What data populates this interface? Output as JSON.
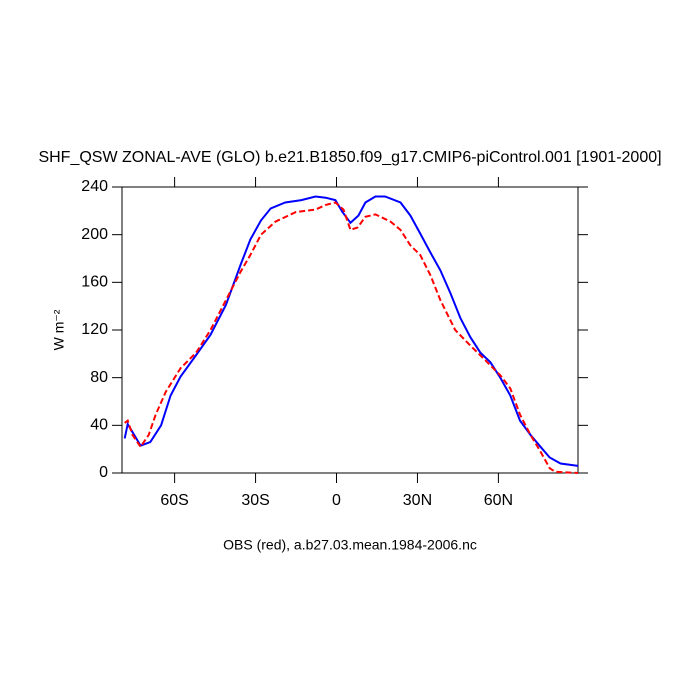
{
  "chart_data": {
    "type": "line",
    "title": "SHF_QSW ZONAL-AVE (GLO) b.e21.B1850.f09_g17.CMIP6-piControl.001 [1901-2000]",
    "ylabel": "W m⁻²",
    "caption": "OBS (red), a.b27.03.mean.1984-2006.nc",
    "xlim": [
      -79.5,
      89.5
    ],
    "ylim": [
      0,
      240
    ],
    "xticks": [
      {
        "value": -60,
        "label": "60S"
      },
      {
        "value": -30,
        "label": "30S"
      },
      0,
      {
        "value": 30,
        "label": "30N"
      },
      {
        "value": 60,
        "label": "60N"
      }
    ],
    "yticks": [
      0,
      40,
      80,
      120,
      160,
      200,
      240
    ],
    "series": [
      {
        "color": "#0000ff",
        "dash": false,
        "x": [
          -78.5,
          -77.4,
          -72.6,
          -69,
          -65,
          -61.5,
          -57.8,
          -52,
          -46.7,
          -41,
          -35.5,
          -31.9,
          -28,
          -24.4,
          -19,
          -13,
          -7.8,
          -4,
          -0.4,
          2.2,
          5.2,
          8.1,
          10.7,
          14.4,
          18,
          23.7,
          27.4,
          31,
          34.8,
          38.5,
          42.2,
          45.9,
          49.6,
          53.3,
          57,
          60.7,
          64.4,
          68,
          71.9,
          75.6,
          79,
          83,
          89.5
        ],
        "values": [
          29,
          41,
          23,
          26,
          40,
          65,
          81,
          99,
          116,
          141,
          175,
          196,
          212,
          222,
          227,
          229,
          232,
          231,
          229,
          219,
          210,
          216,
          227,
          232,
          232,
          227,
          216,
          201,
          185,
          170,
          151,
          130,
          114,
          101,
          93,
          80,
          65,
          44,
          32,
          22,
          13,
          8,
          6
        ]
      },
      {
        "color": "#ff0000",
        "dash": true,
        "x": [
          -78.5,
          -77.4,
          -75.6,
          -72.6,
          -69.6,
          -67,
          -63.3,
          -57.8,
          -52,
          -46.7,
          -41,
          -35.5,
          -31.9,
          -28,
          -22.6,
          -15,
          -7.8,
          -4,
          -0.4,
          2.6,
          5.2,
          7.8,
          10.7,
          14.4,
          20,
          23.7,
          27.4,
          31,
          34.8,
          38.5,
          44,
          49.6,
          55,
          60.7,
          64.4,
          68,
          71.9,
          75.6,
          79,
          81,
          89.5
        ],
        "values": [
          42,
          44,
          32,
          22,
          32,
          49,
          68,
          88,
          101,
          120,
          145,
          169,
          183,
          200,
          211,
          219,
          221,
          225,
          227,
          221,
          204,
          206,
          215,
          217,
          211,
          204,
          191,
          183,
          166,
          145,
          120,
          107,
          95,
          82,
          71,
          49,
          32,
          18,
          4,
          1,
          0
        ]
      }
    ]
  }
}
